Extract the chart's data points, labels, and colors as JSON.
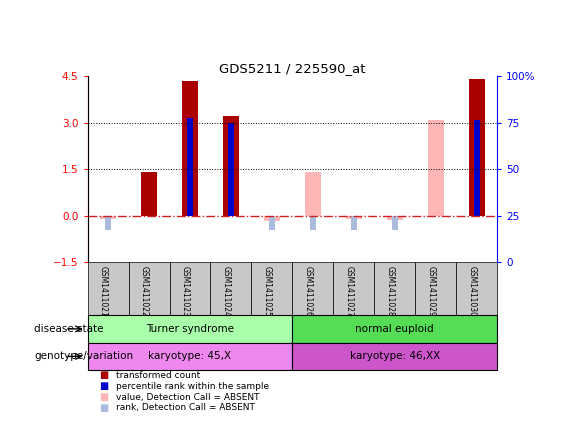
{
  "title": "GDS5211 / 225590_at",
  "samples": [
    "GSM1411021",
    "GSM1411022",
    "GSM1411023",
    "GSM1411024",
    "GSM1411025",
    "GSM1411026",
    "GSM1411027",
    "GSM1411028",
    "GSM1411029",
    "GSM1411030"
  ],
  "transformed_count": [
    null,
    1.4,
    4.35,
    3.2,
    null,
    null,
    null,
    null,
    null,
    4.4
  ],
  "percentile_rank_val": [
    null,
    null,
    3.15,
    3.0,
    null,
    null,
    null,
    null,
    null,
    3.1
  ],
  "value_absent": [
    -0.12,
    null,
    null,
    null,
    -0.18,
    1.42,
    -0.1,
    -0.13,
    3.1,
    null
  ],
  "rank_absent": [
    -0.45,
    null,
    null,
    null,
    -0.45,
    -0.45,
    -0.45,
    -0.45,
    null,
    null
  ],
  "ylim_left": [
    -1.5,
    4.5
  ],
  "ylim_right": [
    0,
    100
  ],
  "yticks_left": [
    -1.5,
    0,
    1.5,
    3.0,
    4.5
  ],
  "yticks_right": [
    0,
    25,
    50,
    75,
    100
  ],
  "color_dark_red": "#AA0000",
  "color_blue": "#0000CC",
  "color_pink": "#FFB6B6",
  "color_light_blue": "#AABBDD",
  "disease_state_groups": [
    {
      "label": "Turner syndrome",
      "start": 0,
      "end": 4,
      "color": "#AAFFAA"
    },
    {
      "label": "normal euploid",
      "start": 5,
      "end": 9,
      "color": "#55DD55"
    }
  ],
  "genotype_groups": [
    {
      "label": "karyotype: 45,X",
      "start": 0,
      "end": 4,
      "color": "#EE88EE"
    },
    {
      "label": "karyotype: 46,XX",
      "start": 5,
      "end": 9,
      "color": "#CC55CC"
    }
  ],
  "legend_items": [
    {
      "color": "#AA0000",
      "label": "transformed count"
    },
    {
      "color": "#0000CC",
      "label": "percentile rank within the sample"
    },
    {
      "color": "#FFB6B6",
      "label": "value, Detection Call = ABSENT"
    },
    {
      "color": "#AABBDD",
      "label": "rank, Detection Call = ABSENT"
    }
  ],
  "bar_width": 0.4,
  "rank_bar_width": 0.15
}
